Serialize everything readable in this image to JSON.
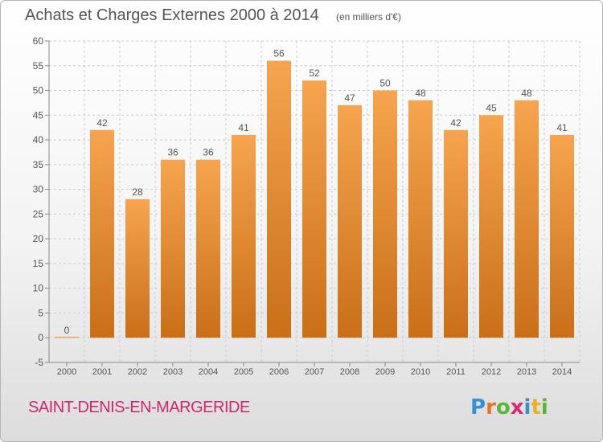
{
  "title": "Achats et Charges Externes 2000 à 2014",
  "subtitle": "(en milliers d'€)",
  "commune": "SAINT-DENIS-EN-MARGERIDE",
  "logo": {
    "text": "Proxiti",
    "letters": [
      "P",
      "r",
      "o",
      "x",
      "i",
      "t",
      "i"
    ],
    "colors": [
      "#3a8fd1",
      "#e8742a",
      "#5ab53a",
      "#d62b6f",
      "#3a8fd1",
      "#e8b12a",
      "#5ab53a"
    ]
  },
  "colors": {
    "bar_top": "#f6a44f",
    "bar_bottom": "#c86f18",
    "text": "#555555",
    "grid": "#cccccc",
    "commune": "#d1276c"
  },
  "chart_data": {
    "type": "bar",
    "categories": [
      "2000",
      "2001",
      "2002",
      "2003",
      "2004",
      "2005",
      "2006",
      "2007",
      "2008",
      "2009",
      "2010",
      "2011",
      "2012",
      "2013",
      "2014"
    ],
    "values": [
      0,
      42,
      28,
      36,
      36,
      41,
      56,
      52,
      47,
      50,
      48,
      42,
      45,
      48,
      41
    ],
    "data_labels": [
      "0",
      "42",
      "28",
      "36",
      "36",
      "41",
      "56",
      "52",
      "47",
      "50",
      "48",
      "42",
      "45",
      "48",
      "41"
    ],
    "yticks": [
      -5,
      0,
      5,
      10,
      15,
      20,
      25,
      30,
      35,
      40,
      45,
      50,
      55,
      60
    ],
    "ylim": [
      -5,
      60
    ],
    "grid": true,
    "xlabel": "",
    "ylabel": ""
  }
}
